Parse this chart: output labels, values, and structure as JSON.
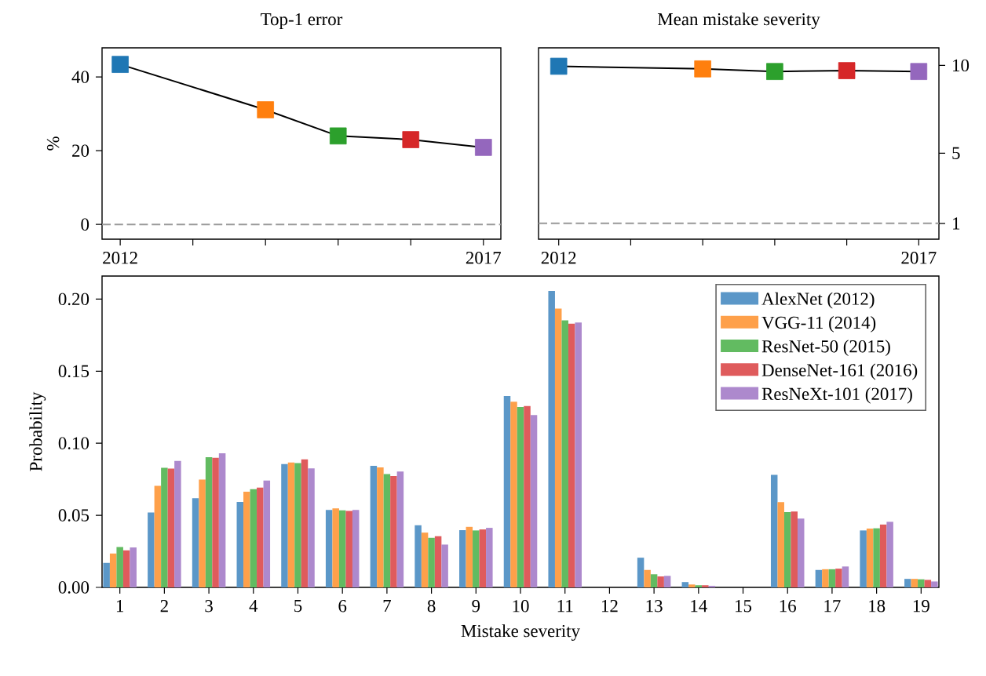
{
  "chart_data": [
    {
      "type": "line",
      "title": "Top-1 error",
      "ylabel": "%",
      "x": [
        2012,
        2014,
        2015,
        2016,
        2017
      ],
      "xlim": [
        2011.75,
        2017.24
      ],
      "xticks": [
        2012,
        {
          "value": 2013,
          "label": null
        },
        {
          "value": 2014,
          "label": null
        },
        {
          "value": 2015,
          "label": null
        },
        {
          "value": 2016,
          "label": null
        },
        2017
      ],
      "ylim": [
        -4.0,
        47.9
      ],
      "yticks": [
        0,
        20,
        40
      ],
      "marker": "square",
      "line_style": "solid",
      "grid": false,
      "legend": false,
      "series": [
        {
          "color": "#000000",
          "colors": [
            "#1f77b4",
            "#ff7f0e",
            "#2ca02c",
            "#d62728",
            "#9467bd"
          ],
          "values": [
            43.4,
            31.1,
            24.0,
            23.0,
            20.9
          ]
        }
      ],
      "ref_lines": [
        {
          "axis": "y",
          "value": 0,
          "color": "#999999",
          "line_style": "dashed"
        }
      ]
    },
    {
      "type": "line",
      "title": "Mean mistake severity",
      "x": [
        2012,
        2014,
        2015,
        2016,
        2017
      ],
      "xlim": [
        2011.72,
        2017.28
      ],
      "xticks": [
        2012,
        {
          "value": 2013,
          "label": null
        },
        {
          "value": 2014,
          "label": null
        },
        {
          "value": 2015,
          "label": null
        },
        {
          "value": 2016,
          "label": null
        },
        2017
      ],
      "y2lim": [
        0.1,
        11.0
      ],
      "y2ticks": [
        1,
        5,
        10
      ],
      "marker": "square",
      "line_style": "solid",
      "grid": false,
      "legend": false,
      "series": [
        {
          "color": "#000000",
          "colors": [
            "#1f77b4",
            "#ff7f0e",
            "#2ca02c",
            "#d62728",
            "#9467bd"
          ],
          "values": [
            9.95,
            9.8,
            9.65,
            9.7,
            9.65
          ],
          "axis": "y2"
        }
      ],
      "ref_lines": [
        {
          "axis": "y2",
          "value": 1,
          "color": "#999999",
          "line_style": "dashed"
        }
      ]
    },
    {
      "type": "bar",
      "xlabel": "Mistake severity",
      "ylabel": "Probability",
      "categories": [
        "1",
        "2",
        "3",
        "4",
        "5",
        "6",
        "7",
        "8",
        "9",
        "10",
        "11",
        "12",
        "13",
        "14",
        "15",
        "16",
        "17",
        "18",
        "19"
      ],
      "ylim": [
        0,
        0.216
      ],
      "yticks": [
        {
          "value": 0,
          "label": "0.00"
        },
        {
          "value": 0.05,
          "label": "0.05"
        },
        {
          "value": 0.1,
          "label": "0.10"
        },
        {
          "value": 0.15,
          "label": "0.15"
        },
        {
          "value": 0.2,
          "label": "0.20"
        }
      ],
      "grid": false,
      "legend": "top right",
      "series": [
        {
          "name": "AlexNet (2012)",
          "color": "#5b97c8",
          "values": [
            0.017,
            0.052,
            0.0619,
            0.0593,
            0.0855,
            0.0537,
            0.0843,
            0.0431,
            0.0397,
            0.1327,
            0.2056,
            0,
            0.0206,
            0.0037,
            0,
            0.0781,
            0.0121,
            0.0395,
            0.0059
          ]
        },
        {
          "name": "VGG-11 (2014)",
          "color": "#fea04a",
          "values": [
            0.0235,
            0.0704,
            0.0748,
            0.0664,
            0.0866,
            0.0548,
            0.0832,
            0.038,
            0.042,
            0.1288,
            0.1934,
            0,
            0.0121,
            0.002,
            0,
            0.0592,
            0.0126,
            0.0408,
            0.0059
          ]
        },
        {
          "name": "ResNet-50 (2015)",
          "color": "#62bb61",
          "values": [
            0.028,
            0.083,
            0.0903,
            0.0681,
            0.0863,
            0.0535,
            0.0786,
            0.0344,
            0.0395,
            0.1251,
            0.1852,
            0,
            0.0091,
            0.0015,
            0,
            0.0523,
            0.0126,
            0.041,
            0.0056
          ]
        },
        {
          "name": "DenseNet-161 (2016)",
          "color": "#df5b5c",
          "values": [
            0.0257,
            0.0824,
            0.0899,
            0.0693,
            0.0888,
            0.0531,
            0.0772,
            0.0355,
            0.0402,
            0.1258,
            0.183,
            0,
            0.0076,
            0.0015,
            0,
            0.0527,
            0.013,
            0.0436,
            0.0052
          ]
        },
        {
          "name": "ResNeXt-101 (2017)",
          "color": "#ad89cd",
          "values": [
            0.0277,
            0.0877,
            0.093,
            0.0741,
            0.0826,
            0.0537,
            0.0804,
            0.0297,
            0.0413,
            0.1195,
            0.1837,
            0,
            0.008,
            0.0011,
            0,
            0.0477,
            0.0145,
            0.0455,
            0.0041
          ]
        }
      ]
    }
  ]
}
